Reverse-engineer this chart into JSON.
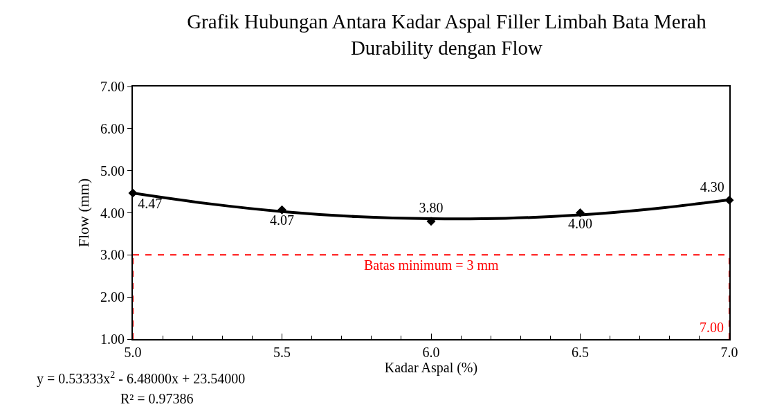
{
  "chart_data": {
    "type": "scatter",
    "title": "Grafik Hubungan Antara Kadar Aspal Filler Limbah Bata Merah\nDurability dengan Flow",
    "xlabel": "Kadar Aspal (%)",
    "ylabel": "Flow (mm)",
    "x": [
      5,
      5.5,
      6,
      6.5,
      7
    ],
    "series": [
      {
        "color": "#000000",
        "marker": "diamond",
        "values": [
          4.47,
          4.07,
          3.8,
          4.0,
          4.3
        ],
        "value_labels": [
          "4.47",
          "4.07",
          "3.80",
          "4.00",
          "4.30"
        ]
      },
      {
        "type": "line",
        "color": "#000000",
        "x": [
          5,
          5.25,
          5.5,
          5.75,
          6,
          6.25,
          6.5,
          6.75,
          7
        ],
        "values": [
          4.47,
          4.22,
          4.03,
          3.91,
          3.86,
          3.87,
          3.95,
          4.1,
          4.31
        ]
      }
    ],
    "xlim": [
      5,
      7
    ],
    "xticks": [
      {
        "value": 5,
        "label": "5.0"
      },
      {
        "value": 5.5,
        "label": "5.5"
      },
      {
        "value": 6,
        "label": "6.0"
      },
      {
        "value": 6.5,
        "label": "6.5"
      },
      {
        "value": 7,
        "label": "7.0"
      }
    ],
    "ylim": [
      1,
      7
    ],
    "yticks": [
      {
        "value": 1,
        "label": "1.00"
      },
      {
        "value": 2,
        "label": "2.00"
      },
      {
        "value": 3,
        "label": "3.00"
      },
      {
        "value": 4,
        "label": "4.00"
      },
      {
        "value": 5,
        "label": "5.00"
      },
      {
        "value": 6,
        "label": "6.00"
      },
      {
        "value": 7,
        "label": "7.00"
      }
    ],
    "ref_lines": [
      {
        "axis": "y",
        "value": 3,
        "label": "Batas minimum = 3 mm",
        "color": "#ff0000",
        "line_style": "dashed"
      },
      {
        "axis": "x",
        "value": 5,
        "color": "#ff0000",
        "line_style": "dashed"
      },
      {
        "axis": "x",
        "value": 7,
        "label": "7.00",
        "color": "#ff0000",
        "line_style": "dashed"
      }
    ],
    "annotations": [
      "y = 0.53333x$^{2}$ - 6.48000x + 23.54000",
      "R² = 0.97386"
    ],
    "grid": false
  }
}
